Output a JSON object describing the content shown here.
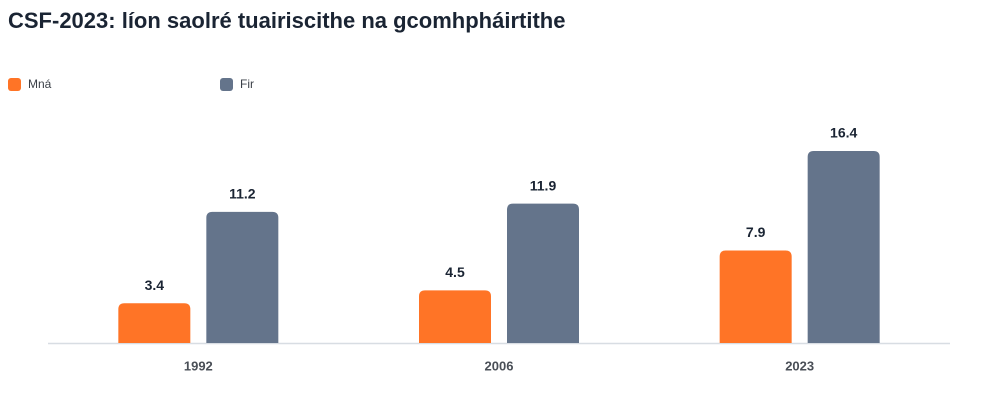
{
  "chart_data": {
    "type": "bar",
    "title": "CSF-2023: líon saolré tuairiscithe na gcomhpháirtithe",
    "categories": [
      "1992",
      "2006",
      "2023"
    ],
    "series": [
      {
        "name": "Mná",
        "color": "#ff7426",
        "values": [
          3.4,
          4.5,
          7.9
        ]
      },
      {
        "name": "Fir",
        "color": "#64748b",
        "values": [
          11.2,
          11.9,
          16.4
        ]
      }
    ],
    "legend": "top-left"
  }
}
